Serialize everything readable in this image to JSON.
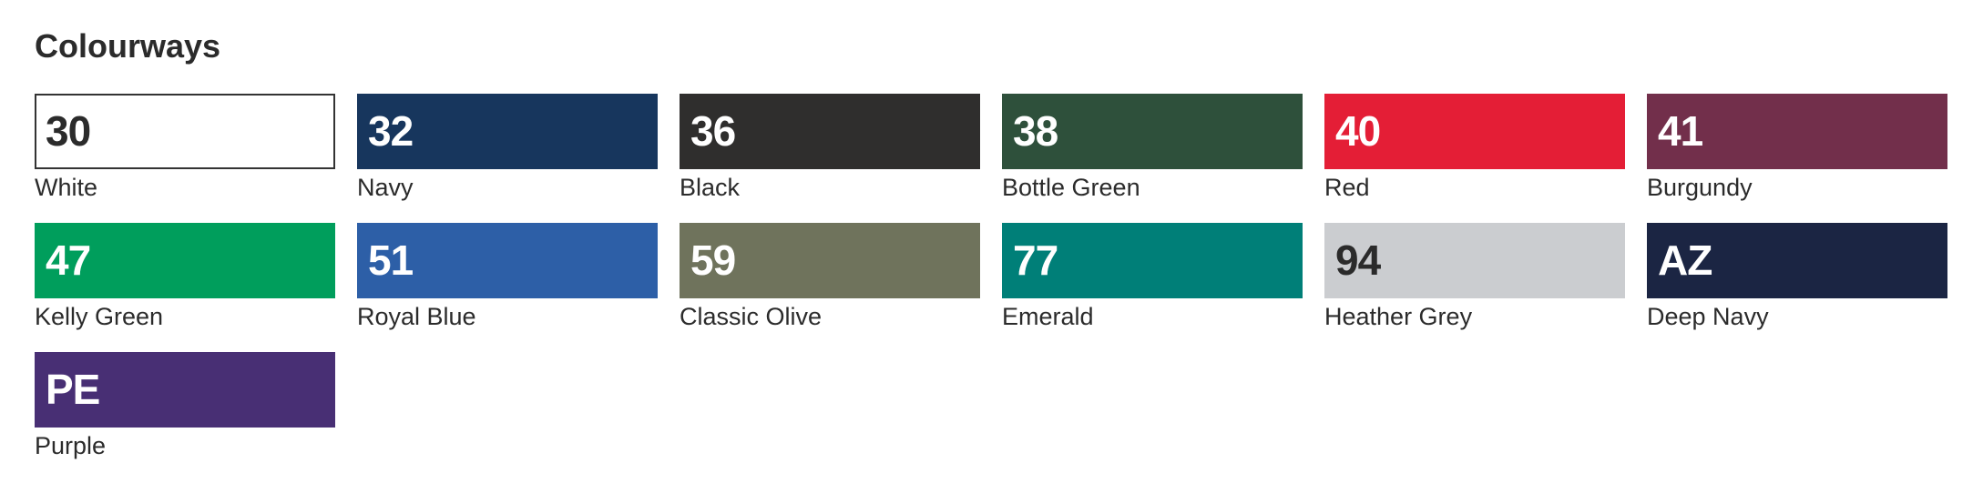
{
  "heading": "Colourways",
  "colourways": [
    {
      "code": "30",
      "name": "White",
      "color": "#ffffff",
      "text_color": "#2b2b2b",
      "border": "#333333"
    },
    {
      "code": "32",
      "name": "Navy",
      "color": "#17365d",
      "text_color": "#ffffff"
    },
    {
      "code": "36",
      "name": "Black",
      "color": "#2f2e2d",
      "text_color": "#ffffff"
    },
    {
      "code": "38",
      "name": "Bottle Green",
      "color": "#2e503b",
      "text_color": "#ffffff"
    },
    {
      "code": "40",
      "name": "Red",
      "color": "#e41e36",
      "text_color": "#ffffff"
    },
    {
      "code": "41",
      "name": "Burgundy",
      "color": "#722f4b",
      "text_color": "#ffffff"
    },
    {
      "code": "47",
      "name": "Kelly Green",
      "color": "#009e5c",
      "text_color": "#ffffff"
    },
    {
      "code": "51",
      "name": "Royal Blue",
      "color": "#2d5fa7",
      "text_color": "#ffffff"
    },
    {
      "code": "59",
      "name": "Classic Olive",
      "color": "#6f735c",
      "text_color": "#ffffff"
    },
    {
      "code": "77",
      "name": "Emerald",
      "color": "#007f78",
      "text_color": "#ffffff"
    },
    {
      "code": "94",
      "name": "Heather Grey",
      "color": "#cbcdd0",
      "text_color": "#2b2b2b"
    },
    {
      "code": "AZ",
      "name": "Deep Navy",
      "color": "#1b2543",
      "text_color": "#ffffff"
    },
    {
      "code": "PE",
      "name": "Purple",
      "color": "#482f74",
      "text_color": "#ffffff"
    }
  ]
}
